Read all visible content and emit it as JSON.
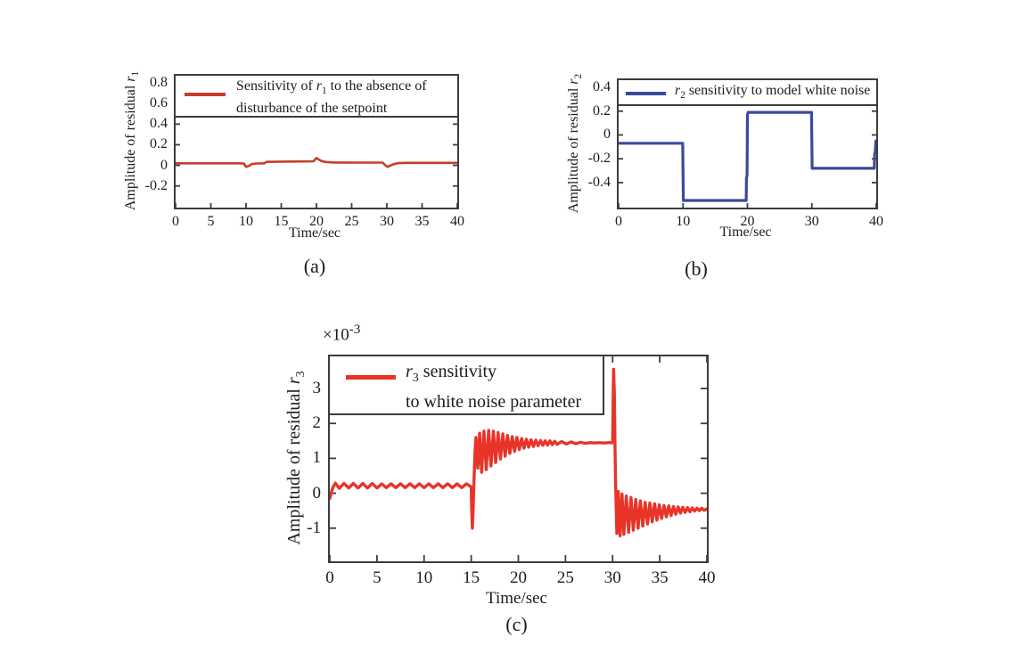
{
  "page": {
    "background": "#FFFFFF"
  },
  "chart_data": [
    {
      "id": "a",
      "type": "line",
      "caption": "(a)",
      "xlabel": "Time/sec",
      "ylabel": {
        "text": "Amplitude of residual ",
        "var": "r",
        "sub": "1"
      },
      "xlim": [
        0,
        40
      ],
      "ylim": [
        -0.41,
        0.87
      ],
      "xticks": [
        0,
        5,
        10,
        15,
        20,
        25,
        30,
        35,
        40
      ],
      "xtick_labels": [
        "0",
        "5",
        "10",
        "15",
        "20",
        "25",
        "30",
        "35",
        "40"
      ],
      "yticks": [
        0.8,
        0.6,
        0.4,
        0.2,
        0,
        -0.2
      ],
      "ytick_labels": [
        "0.8",
        "0.6",
        "0.4",
        "0.2",
        "0",
        "-0.2"
      ],
      "grid": false,
      "axis_color": "#3C3C3C",
      "legend": {
        "position": "top-full-width",
        "pre": "Sensitivity of ",
        "var": "r",
        "sub": "1",
        "post": " to the absence of",
        "line2": "disturbance of the setpoint"
      },
      "series": [
        {
          "name": "Sensitivity of r1 to the absence of disturbance of the setpoint",
          "color": "#C53E2B",
          "width": 2.6,
          "points": [
            [
              0,
              0.02
            ],
            [
              9.0,
              0.02
            ],
            [
              9.7,
              0.018
            ],
            [
              10.0,
              -0.015
            ],
            [
              10.4,
              -0.005
            ],
            [
              10.8,
              0.012
            ],
            [
              11.5,
              0.018
            ],
            [
              12.6,
              0.02
            ],
            [
              12.9,
              0.034
            ],
            [
              15,
              0.036
            ],
            [
              18,
              0.038
            ],
            [
              19.6,
              0.04
            ],
            [
              20.0,
              0.072
            ],
            [
              20.3,
              0.058
            ],
            [
              20.7,
              0.042
            ],
            [
              21.3,
              0.033
            ],
            [
              22.5,
              0.028
            ],
            [
              26,
              0.027
            ],
            [
              29.4,
              0.027
            ],
            [
              29.8,
              0.0
            ],
            [
              30.1,
              -0.015
            ],
            [
              30.5,
              -0.002
            ],
            [
              31.0,
              0.012
            ],
            [
              31.6,
              0.022
            ],
            [
              33,
              0.024
            ],
            [
              40,
              0.024
            ]
          ]
        }
      ]
    },
    {
      "id": "b",
      "type": "line",
      "caption": "(b)",
      "xlabel": "Time/sec",
      "ylabel": {
        "text": "Amplitude of residual ",
        "var": "r",
        "sub": "2"
      },
      "xlim": [
        0,
        40
      ],
      "ylim": [
        -0.61,
        0.46
      ],
      "xticks": [
        0,
        10,
        20,
        30,
        40
      ],
      "xtick_labels": [
        "0",
        "10",
        "20",
        "30",
        "40"
      ],
      "yticks": [
        0.4,
        0.2,
        0,
        -0.2,
        -0.4
      ],
      "ytick_labels": [
        "0.4",
        "0.2",
        "0",
        "-0.2",
        "-0.4"
      ],
      "grid": false,
      "axis_color": "#3C3C3C",
      "legend": {
        "position": "top-full-width",
        "pre": "",
        "var": "r",
        "sub": "2",
        "post": " sensitivity to model white noise",
        "line2": ""
      },
      "series": [
        {
          "name": "r2 sensitivity to model white noise",
          "color": "#3A4A9B",
          "width": 3.2,
          "points": [
            [
              0,
              -0.07
            ],
            [
              9.95,
              -0.07
            ],
            [
              10.05,
              -0.55
            ],
            [
              19.8,
              -0.55
            ],
            [
              19.85,
              -0.36
            ],
            [
              19.95,
              -0.34
            ],
            [
              20.0,
              0.17
            ],
            [
              20.1,
              0.19
            ],
            [
              29.95,
              0.19
            ],
            [
              30.05,
              -0.28
            ],
            [
              39.7,
              -0.28
            ],
            [
              39.75,
              -0.16
            ],
            [
              39.85,
              -0.14
            ],
            [
              39.95,
              -0.05
            ],
            [
              40,
              -0.06
            ]
          ]
        }
      ]
    },
    {
      "id": "c",
      "type": "line",
      "caption": "(c)",
      "xlabel": "Time/sec",
      "ylabel": {
        "text": "Amplitude of residual ",
        "var": "r",
        "sub": "3"
      },
      "exp_label": {
        "base": "×10",
        "exp": "-3"
      },
      "y_scale_note": "axis values are ×10^-3",
      "xlim": [
        0,
        40
      ],
      "ylim": [
        -1.95,
        3.92
      ],
      "xticks": [
        0,
        5,
        10,
        15,
        20,
        25,
        30,
        35,
        40
      ],
      "xtick_labels": [
        "0",
        "5",
        "10",
        "15",
        "20",
        "25",
        "30",
        "35",
        "40"
      ],
      "yticks": [
        3,
        2,
        1,
        0,
        -1
      ],
      "ytick_labels": [
        "3",
        "2",
        "1",
        "0",
        "-1"
      ],
      "grid": false,
      "axis_color": "#3C3C3C",
      "legend": {
        "position": "top-left",
        "pre": "",
        "var": "r",
        "sub": "3",
        "post": " sensitivity",
        "line2": "to white noise parameter"
      },
      "series": [
        {
          "name": "r3 sensitivity to white noise parameter",
          "color": "#E83428",
          "width": 3.4,
          "points": [
            [
              0,
              -0.15
            ],
            [
              0.15,
              0.02
            ],
            [
              0.35,
              0.18
            ],
            [
              0.6,
              0.29
            ],
            [
              1,
              0.14
            ],
            [
              1.5,
              0.28
            ],
            [
              2,
              0.15
            ],
            [
              2.5,
              0.28
            ],
            [
              3,
              0.15
            ],
            [
              3.5,
              0.28
            ],
            [
              4,
              0.15
            ],
            [
              4.5,
              0.28
            ],
            [
              5,
              0.15
            ],
            [
              5.5,
              0.27
            ],
            [
              6,
              0.16
            ],
            [
              6.5,
              0.27
            ],
            [
              7,
              0.16
            ],
            [
              7.5,
              0.27
            ],
            [
              8,
              0.16
            ],
            [
              8.5,
              0.27
            ],
            [
              9,
              0.16
            ],
            [
              9.5,
              0.27
            ],
            [
              10,
              0.16
            ],
            [
              10.5,
              0.27
            ],
            [
              11,
              0.16
            ],
            [
              11.5,
              0.27
            ],
            [
              12,
              0.16
            ],
            [
              12.5,
              0.27
            ],
            [
              13,
              0.16
            ],
            [
              13.5,
              0.27
            ],
            [
              14,
              0.16
            ],
            [
              14.5,
              0.27
            ],
            [
              14.9,
              0.2
            ],
            [
              15,
              0.18
            ],
            [
              15.05,
              -0.5
            ],
            [
              15.12,
              -1
            ],
            [
              15.2,
              -0.55
            ],
            [
              15.3,
              0.4
            ],
            [
              15.4,
              1.2
            ],
            [
              15.5,
              1.6
            ],
            [
              15.7,
              0.72
            ],
            [
              15.9,
              1.72
            ],
            [
              16.1,
              0.6
            ],
            [
              16.35,
              1.78
            ],
            [
              16.6,
              0.68
            ],
            [
              16.85,
              1.8
            ],
            [
              17.1,
              0.78
            ],
            [
              17.35,
              1.78
            ],
            [
              17.6,
              0.88
            ],
            [
              17.85,
              1.74
            ],
            [
              18.1,
              0.98
            ],
            [
              18.35,
              1.7
            ],
            [
              18.6,
              1.06
            ],
            [
              18.85,
              1.66
            ],
            [
              19.1,
              1.14
            ],
            [
              19.35,
              1.62
            ],
            [
              19.6,
              1.2
            ],
            [
              19.85,
              1.6
            ],
            [
              20.1,
              1.25
            ],
            [
              20.35,
              1.57
            ],
            [
              20.6,
              1.29
            ],
            [
              20.85,
              1.55
            ],
            [
              21.1,
              1.32
            ],
            [
              21.35,
              1.53
            ],
            [
              21.6,
              1.34
            ],
            [
              21.85,
              1.52
            ],
            [
              22.1,
              1.36
            ],
            [
              22.35,
              1.51
            ],
            [
              22.6,
              1.37
            ],
            [
              22.85,
              1.5
            ],
            [
              23.1,
              1.38
            ],
            [
              23.35,
              1.5
            ],
            [
              23.6,
              1.39
            ],
            [
              23.85,
              1.49
            ],
            [
              24.1,
              1.4
            ],
            [
              24.6,
              1.48
            ],
            [
              25.1,
              1.41
            ],
            [
              25.6,
              1.47
            ],
            [
              26.1,
              1.42
            ],
            [
              26.6,
              1.46
            ],
            [
              27.1,
              1.43
            ],
            [
              27.6,
              1.45
            ],
            [
              28.1,
              1.44
            ],
            [
              28.6,
              1.45
            ],
            [
              29.1,
              1.44
            ],
            [
              29.6,
              1.45
            ],
            [
              29.95,
              1.45
            ],
            [
              30,
              1.45
            ],
            [
              30.05,
              2.6
            ],
            [
              30.1,
              3.55
            ],
            [
              30.18,
              2.9
            ],
            [
              30.25,
              1.4
            ],
            [
              30.33,
              0.15
            ],
            [
              30.45,
              -1.15
            ],
            [
              30.6,
              0.05
            ],
            [
              30.8,
              -1.22
            ],
            [
              31,
              -0.02
            ],
            [
              31.2,
              -1.18
            ],
            [
              31.45,
              -0.08
            ],
            [
              31.7,
              -1.12
            ],
            [
              31.95,
              -0.12
            ],
            [
              32.2,
              -1.06
            ],
            [
              32.45,
              -0.18
            ],
            [
              32.7,
              -1
            ],
            [
              32.95,
              -0.22
            ],
            [
              33.2,
              -0.94
            ],
            [
              33.45,
              -0.26
            ],
            [
              33.7,
              -0.88
            ],
            [
              33.95,
              -0.28
            ],
            [
              34.2,
              -0.82
            ],
            [
              34.45,
              -0.3
            ],
            [
              34.7,
              -0.77
            ],
            [
              34.95,
              -0.33
            ],
            [
              35.2,
              -0.72
            ],
            [
              35.45,
              -0.35
            ],
            [
              35.7,
              -0.68
            ],
            [
              35.95,
              -0.36
            ],
            [
              36.2,
              -0.64
            ],
            [
              36.45,
              -0.38
            ],
            [
              36.7,
              -0.6
            ],
            [
              36.95,
              -0.39
            ],
            [
              37.2,
              -0.57
            ],
            [
              37.45,
              -0.4
            ],
            [
              37.7,
              -0.55
            ],
            [
              37.95,
              -0.41
            ],
            [
              38.2,
              -0.53
            ],
            [
              38.45,
              -0.42
            ],
            [
              38.7,
              -0.51
            ],
            [
              38.95,
              -0.43
            ],
            [
              39.2,
              -0.5
            ],
            [
              39.45,
              -0.43
            ],
            [
              39.7,
              -0.49
            ],
            [
              40,
              -0.45
            ]
          ]
        }
      ]
    }
  ]
}
